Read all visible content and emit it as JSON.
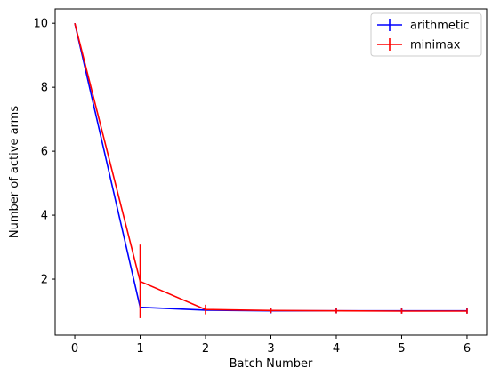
{
  "chart_data": {
    "type": "line",
    "xlabel": "Batch Number",
    "ylabel": "Number of active arms",
    "xlim": [
      -0.3,
      6.3
    ],
    "ylim": [
      0.25,
      10.45
    ],
    "xticks": [
      0,
      1,
      2,
      3,
      4,
      5,
      6
    ],
    "yticks": [
      2,
      4,
      6,
      8,
      10
    ],
    "grid": false,
    "legend_position": "top-right",
    "series": [
      {
        "name": "arithmetic",
        "color": "#0000ff",
        "x": [
          0,
          1,
          2,
          3,
          4,
          5,
          6
        ],
        "y": [
          10,
          1.12,
          1.03,
          1.01,
          1.01,
          1.01,
          1.01
        ],
        "yerr": [
          0,
          0.0,
          0.0,
          0.08,
          0.08,
          0.08,
          0.08
        ]
      },
      {
        "name": "minimax",
        "color": "#ff0000",
        "x": [
          0,
          1,
          2,
          3,
          4,
          5,
          6
        ],
        "y": [
          10,
          1.93,
          1.05,
          1.02,
          1.01,
          1.0,
          1.0
        ],
        "yerr": [
          0,
          1.15,
          0.15,
          0.08,
          0.08,
          0.08,
          0.08
        ]
      }
    ]
  }
}
